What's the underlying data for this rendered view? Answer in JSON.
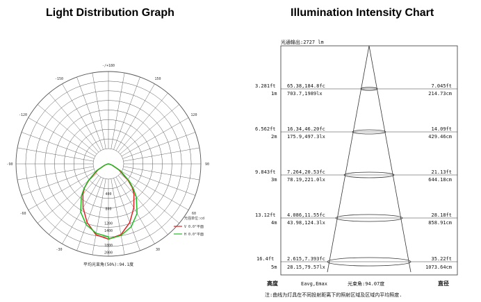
{
  "titles": {
    "left": "Light Distribution Graph",
    "right": "Illumination Intensity Chart"
  },
  "polar": {
    "angle_labels": [
      {
        "text": "-/+180",
        "angle": 180
      },
      {
        "text": "-150",
        "angle": -150
      },
      {
        "text": "150",
        "angle": 150
      },
      {
        "text": "-120",
        "angle": -120
      },
      {
        "text": "120",
        "angle": 120
      },
      {
        "text": "-90",
        "angle": -90
      },
      {
        "text": "90",
        "angle": 90
      },
      {
        "text": "-60",
        "angle": -60
      },
      {
        "text": "60",
        "angle": 60
      },
      {
        "text": "-30",
        "angle": -30
      },
      {
        "text": "30",
        "angle": 30
      }
    ],
    "radial_labels": [
      "400",
      "800",
      "1200",
      "1400",
      "1800",
      "2000"
    ],
    "legend": {
      "title": "光强单位:cd",
      "items": [
        {
          "text": "V 0.0°平面",
          "color": "#e02020"
        },
        {
          "text": "H 0.0°平面",
          "color": "#22bb22"
        }
      ]
    },
    "beam_angle_text": "平均光束角(50%):94.1度",
    "curves": {
      "red": [
        [
          0,
          2050
        ],
        [
          10,
          1960
        ],
        [
          20,
          1700
        ],
        [
          30,
          1380
        ],
        [
          40,
          1080
        ],
        [
          45,
          920
        ],
        [
          50,
          700
        ],
        [
          60,
          330
        ],
        [
          70,
          100
        ],
        [
          80,
          20
        ],
        [
          90,
          0
        ]
      ],
      "green": [
        [
          0,
          2050
        ],
        [
          10,
          1980
        ],
        [
          20,
          1820
        ],
        [
          30,
          1560
        ],
        [
          40,
          1180
        ],
        [
          45,
          960
        ],
        [
          50,
          740
        ],
        [
          60,
          380
        ],
        [
          70,
          120
        ],
        [
          80,
          25
        ],
        [
          90,
          0
        ]
      ]
    },
    "max_value": 2100
  },
  "intensity": {
    "lumen_text": "光通输出:2727 lm",
    "rows": [
      {
        "height_ft": "3.281ft",
        "height_m": "1m",
        "lux_fc": "65.38,184.8fc",
        "lux_lx": "703.7,1989lx",
        "diam_ft": "7.045ft",
        "diam_cm": "214.73cm"
      },
      {
        "height_ft": "6.562ft",
        "height_m": "2m",
        "lux_fc": "16.34,46.20fc",
        "lux_lx": "175.9,497.3lx",
        "diam_ft": "14.09ft",
        "diam_cm": "429.46cm"
      },
      {
        "height_ft": "9.843ft",
        "height_m": "3m",
        "lux_fc": "7.264,20.53fc",
        "lux_lx": "78.19,221.0lx",
        "diam_ft": "21.13ft",
        "diam_cm": "644.18cm"
      },
      {
        "height_ft": "13.12ft",
        "height_m": "4m",
        "lux_fc": "4.086,11.55fc",
        "lux_lx": "43.98,124.3lx",
        "diam_ft": "28.18ft",
        "diam_cm": "858.91cm"
      },
      {
        "height_ft": "16.4ft",
        "height_m": "5m",
        "lux_fc": "2.615,7.393fc",
        "lux_lx": "28.15,79.57lx",
        "diam_ft": "35.22ft",
        "diam_cm": "1073.64cm"
      }
    ],
    "footer": {
      "height": "高度",
      "eavg": "Eavg,Emax",
      "beam_angle": "光束角:94.07度",
      "diameter": "直径"
    },
    "note": "注:曲线为灯具在不同投射距离下的照射区域及区域内平均照度."
  }
}
